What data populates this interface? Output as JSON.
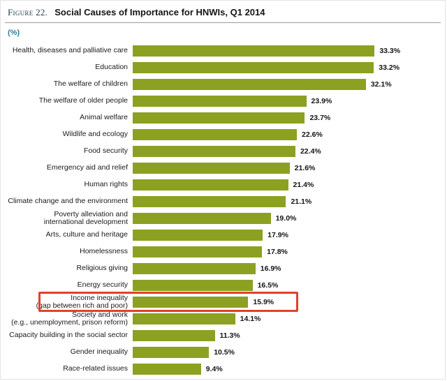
{
  "figure": {
    "label": "Figure 22.",
    "title": "Social Causes of Importance for HNWIs, Q1 2014",
    "unit": "(%)"
  },
  "chart_data": {
    "type": "bar",
    "orientation": "horizontal",
    "title": "Social Causes of Importance for HNWIs, Q1 2014",
    "xlabel": "(%)",
    "xlim": [
      0,
      36
    ],
    "grid": false,
    "legend": "none",
    "bar_color": "#8ca122",
    "categories": [
      "Health, diseases and palliative care",
      "Education",
      "The welfare of children",
      "The welfare of older people",
      "Animal welfare",
      "Wildlife and ecology",
      "Food security",
      "Emergency aid and relief",
      "Human rights",
      "Climate change and the environment",
      "Poverty alleviation and\ninternational development",
      "Arts, culture and heritage",
      "Homelessness",
      "Religious giving",
      "Energy security",
      "Income inequality\n(gap between rich and poor)",
      "Society and work\n(e.g., unemployment, prison reform)",
      "Capacity building in the social sector",
      "Gender inequality",
      "Race-related issues"
    ],
    "values": [
      33.3,
      33.2,
      32.1,
      23.9,
      23.7,
      22.6,
      22.4,
      21.6,
      21.4,
      21.1,
      19.0,
      17.9,
      17.8,
      16.9,
      16.5,
      15.9,
      14.1,
      11.3,
      10.5,
      9.4
    ],
    "value_labels": [
      "33.3%",
      "33.2%",
      "32.1%",
      "23.9%",
      "23.7%",
      "22.6%",
      "22.4%",
      "21.6%",
      "21.4%",
      "21.1%",
      "19.0%",
      "17.9%",
      "17.8%",
      "16.9%",
      "16.5%",
      "15.9%",
      "14.1%",
      "11.3%",
      "10.5%",
      "9.4%"
    ],
    "highlight": {
      "category": "Income inequality\n(gap between rich and poor)",
      "value": 15.9,
      "color": "#e0412c"
    }
  }
}
